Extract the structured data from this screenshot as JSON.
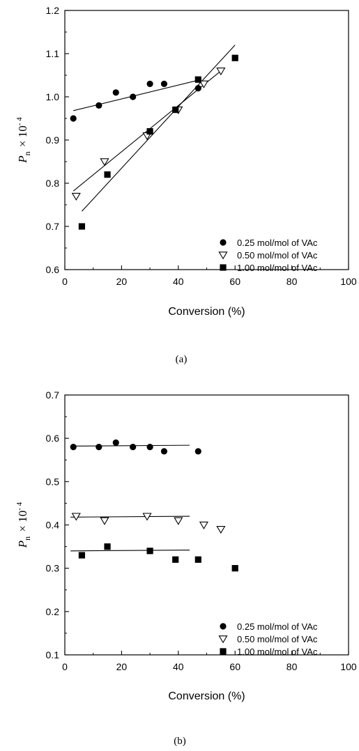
{
  "figure": {
    "panel_labels": [
      "(a)",
      "(b)"
    ]
  },
  "chart_data": [
    {
      "type": "scatter",
      "panel": "(a)",
      "xlabel": "Conversion (%)",
      "ylabel": "P_n × 10^-4",
      "ylabel_parts": {
        "symbol": "P",
        "subscript": "n",
        "times": "× 10",
        "exponent": "- 4"
      },
      "xlim": [
        0,
        100
      ],
      "ylim": [
        0.6,
        1.2
      ],
      "xticks": [
        "0",
        "20",
        "40",
        "60",
        "80",
        "100"
      ],
      "yticks": [
        "0.6",
        "0.7",
        "0.8",
        "0.9",
        "1.0",
        "1.1",
        "1.2"
      ],
      "legend_position": "bottom-right",
      "series": [
        {
          "name": "0.25 mol/mol of VAc",
          "marker": "filled-circle",
          "x": [
            3,
            12,
            18,
            24,
            30,
            35,
            47
          ],
          "y": [
            0.95,
            0.98,
            1.01,
            1.0,
            1.03,
            1.03,
            1.02
          ],
          "fit": [
            [
              3,
              0.968
            ],
            [
              48,
              1.04
            ]
          ]
        },
        {
          "name": "0.50 mol/mol of VAc",
          "marker": "open-down-triangle",
          "x": [
            4,
            14,
            29,
            40,
            49,
            55
          ],
          "y": [
            0.77,
            0.85,
            0.91,
            0.97,
            1.03,
            1.06
          ],
          "fit": [
            [
              3,
              0.782
            ],
            [
              55,
              1.06
            ]
          ]
        },
        {
          "name": "1.00 mol/mol of VAc",
          "marker": "filled-square",
          "x": [
            6,
            15,
            30,
            39,
            47,
            60
          ],
          "y": [
            0.7,
            0.82,
            0.92,
            0.97,
            1.04,
            1.09
          ],
          "fit": [
            [
              6,
              0.735
            ],
            [
              60,
              1.12
            ]
          ]
        }
      ]
    },
    {
      "type": "scatter",
      "panel": "(b)",
      "xlabel": "Conversion (%)",
      "ylabel": "P_n × 10^-4",
      "ylabel_parts": {
        "symbol": "P",
        "subscript": "n",
        "times": "× 10",
        "exponent": "- 4"
      },
      "xlim": [
        0,
        100
      ],
      "ylim": [
        0.1,
        0.7
      ],
      "xticks": [
        "0",
        "20",
        "40",
        "60",
        "80",
        "100"
      ],
      "yticks": [
        "0.1",
        "0.2",
        "0.3",
        "0.4",
        "0.5",
        "0.6",
        "0.7"
      ],
      "legend_position": "bottom-right",
      "series": [
        {
          "name": "0.25 mol/mol of VAc",
          "marker": "filled-circle",
          "x": [
            3,
            12,
            18,
            24,
            30,
            35,
            47
          ],
          "y": [
            0.58,
            0.58,
            0.59,
            0.58,
            0.58,
            0.57,
            0.57
          ],
          "fit": [
            [
              2,
              0.582
            ],
            [
              44,
              0.584
            ]
          ]
        },
        {
          "name": "0.50 mol/mol of VAc",
          "marker": "open-down-triangle",
          "x": [
            4,
            14,
            29,
            40,
            49,
            55
          ],
          "y": [
            0.42,
            0.41,
            0.42,
            0.41,
            0.4,
            0.39
          ],
          "fit": [
            [
              2,
              0.418
            ],
            [
              44,
              0.42
            ]
          ]
        },
        {
          "name": "1.00 mol/mol of VAc",
          "marker": "filled-square",
          "x": [
            6,
            15,
            30,
            39,
            47,
            60
          ],
          "y": [
            0.33,
            0.35,
            0.34,
            0.32,
            0.32,
            0.3
          ],
          "fit": [
            [
              2,
              0.34
            ],
            [
              44,
              0.342
            ]
          ]
        }
      ]
    }
  ]
}
